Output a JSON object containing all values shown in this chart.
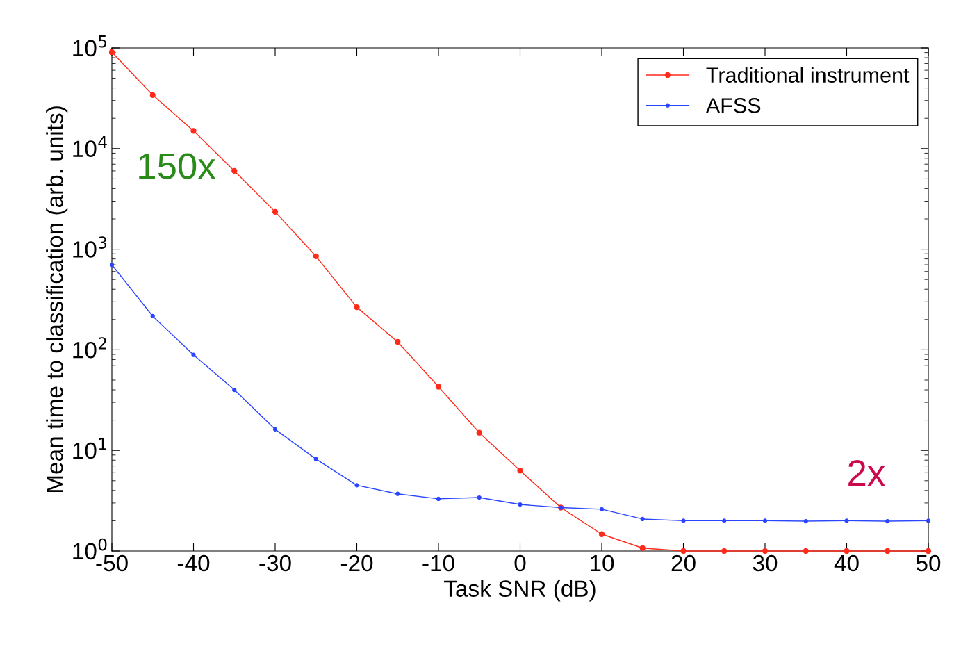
{
  "chart_data": {
    "type": "line",
    "xlabel": "Task SNR (dB)",
    "ylabel": "Mean time to classification (arb. units)",
    "x": [
      -50,
      -45,
      -40,
      -35,
      -30,
      -25,
      -20,
      -15,
      -10,
      -5,
      0,
      5,
      10,
      15,
      20,
      25,
      30,
      35,
      40,
      45,
      50
    ],
    "series": [
      {
        "name": "Traditional instrument",
        "color": "#ff2a1a",
        "values": [
          91000,
          34000,
          15000,
          6000,
          2350,
          850,
          265,
          120,
          43,
          15,
          6.3,
          2.7,
          1.47,
          1.07,
          1.0,
          1.0,
          1.0,
          1.0,
          1.0,
          1.0,
          1.0
        ]
      },
      {
        "name": "AFSS",
        "color": "#2a45ff",
        "values": [
          700,
          216,
          89,
          40,
          16.2,
          8.2,
          4.5,
          3.7,
          3.3,
          3.4,
          2.9,
          2.7,
          2.6,
          2.08,
          2.0,
          2.0,
          2.0,
          1.98,
          2.0,
          1.98,
          2.0
        ]
      }
    ],
    "log": "y",
    "xlim": [
      -50,
      50
    ],
    "xticks": [
      -50,
      -40,
      -30,
      -20,
      -10,
      0,
      10,
      20,
      30,
      40,
      50
    ],
    "ylim": [
      1,
      100000
    ],
    "yticks": [
      {
        "value": 1,
        "label": "10$^{0}$"
      },
      {
        "value": 10,
        "label": "10$^{1}$"
      },
      {
        "value": 100,
        "label": "10$^{2}$"
      },
      {
        "value": 1000,
        "label": "10$^{3}$"
      },
      {
        "value": 10000,
        "label": "10$^{4}$"
      },
      {
        "value": 100000,
        "label": "10$^{5}$"
      }
    ],
    "annotations": [
      "150x",
      "2x"
    ],
    "legend": "top right",
    "marker": "circle",
    "line_style": "solid",
    "grid": false
  }
}
